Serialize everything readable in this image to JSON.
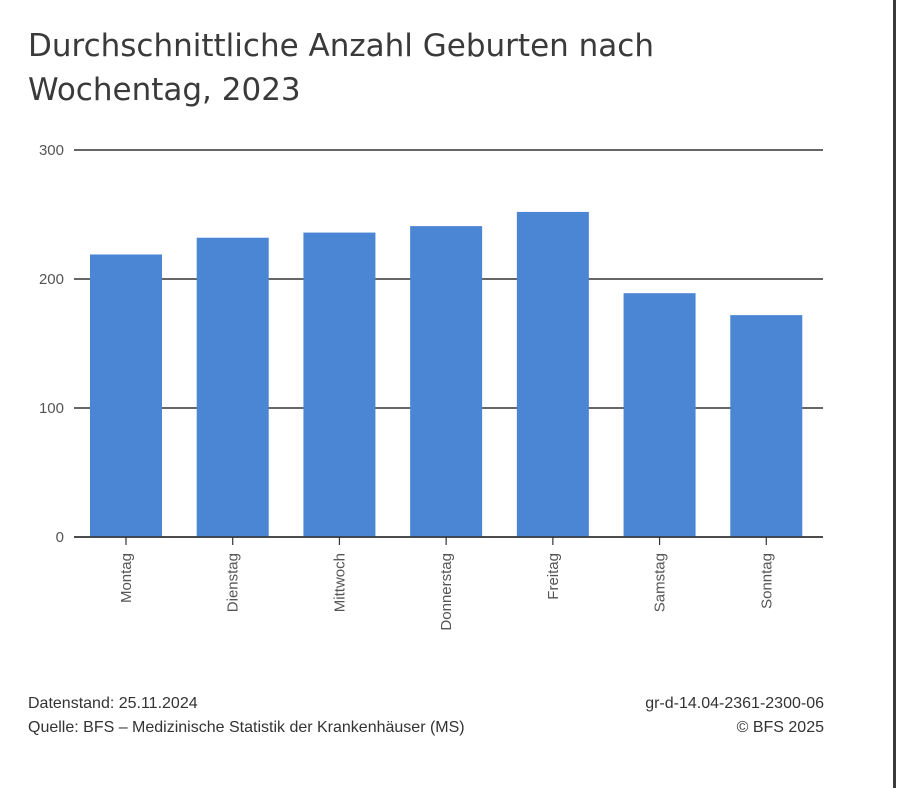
{
  "title": "Durchschnittliche Anzahl Geburten nach Wochentag, 2023",
  "footer": {
    "datenstand": "Datenstand: 25.11.2024",
    "quelle": "Quelle: BFS – Medizinische Statistik der Krankenhäuser (MS)",
    "code": "gr-d-14.04-2361-2300-06",
    "copyright": "© BFS 2025"
  },
  "colors": {
    "bar": "#4a86d4",
    "grid": "#333333",
    "tick_text": "#555555"
  },
  "chart_data": {
    "type": "bar",
    "title": "Durchschnittliche Anzahl Geburten nach Wochentag, 2023",
    "categories": [
      "Montag",
      "Dienstag",
      "Mittwoch",
      "Donnerstag",
      "Freitag",
      "Samstag",
      "Sonntag"
    ],
    "values": [
      219,
      232,
      236,
      241,
      252,
      189,
      172
    ],
    "ylim": [
      0,
      300
    ],
    "yticks": [
      0,
      100,
      200,
      300
    ],
    "xlabel": "",
    "ylabel": "",
    "grid": true,
    "legend": "none"
  }
}
